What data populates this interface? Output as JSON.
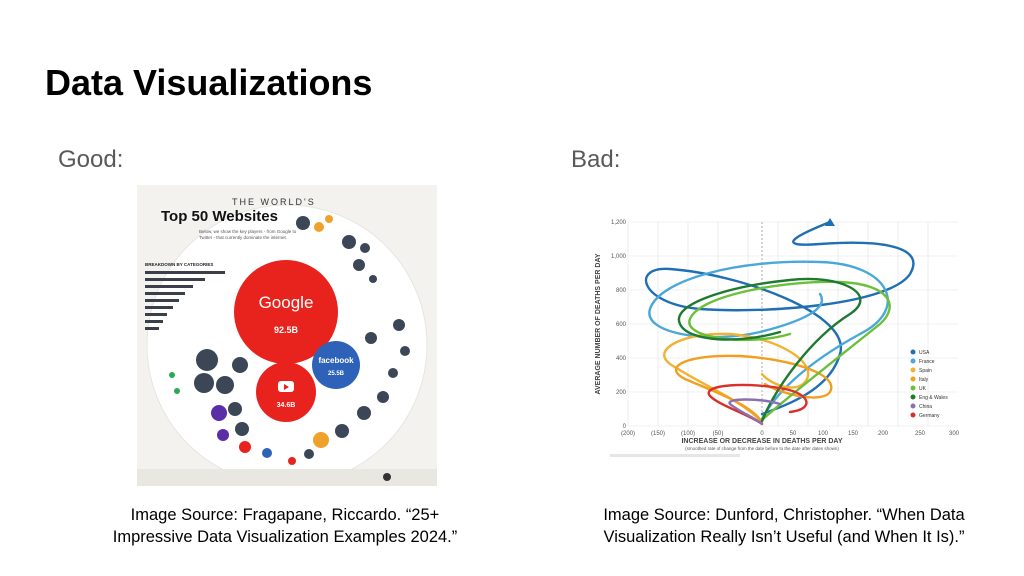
{
  "slide": {
    "title": "Data Visualizations",
    "good_label": "Good:",
    "bad_label": "Bad:",
    "left_caption_line1": "Image Source: Fragapane, Riccardo. “25+",
    "left_caption_line2": "Impressive Data Visualization Examples 2024.”",
    "right_caption_line1": "Image Source: Dunford, Christopher. “When Data",
    "right_caption_line2": "Visualization Really Isn’t Useful (and When It Is).”"
  },
  "good_image": {
    "heading_small": "THE WORLD'S",
    "heading_large": "Top 50 Websites",
    "subtitle_line1": "Below, we show the key players - from Google to",
    "subtitle_line2": "Twitter - that currently dominate the internet.",
    "breakdown_title": "BREAKDOWN BY CATEGORIES",
    "google": {
      "name": "Google",
      "value": "92.5B"
    },
    "facebook": {
      "name": "facebook",
      "value": "25.5B"
    },
    "youtube": {
      "value": "34.6B"
    }
  },
  "bad_image": {
    "y_axis_label": "AVERAGE NUMBER OF DEATHS PER DAY",
    "x_axis_label": "INCREASE OR DECREASE IN DEATHS PER DAY",
    "x_axis_sublabel": "(smoothed rate of change from the date before to the date after dates shown)",
    "y_ticks": [
      "0",
      "200",
      "400",
      "600",
      "800",
      "1,000",
      "1,200"
    ],
    "x_ticks": [
      "(200)",
      "(150)",
      "(100)",
      "(50)",
      "0",
      "50",
      "100",
      "150",
      "200",
      "250",
      "300"
    ],
    "legend": [
      "USA",
      "France",
      "Spain",
      "Italy",
      "UK",
      "Eng & Wales",
      "China",
      "Germany"
    ],
    "colors": {
      "usa": "#1f6fb2",
      "france": "#4aa8d8",
      "spain": "#f2b233",
      "italy": "#f0a020",
      "uk": "#6cbf3a",
      "eng_wales": "#1d7a30",
      "china": "#8a6fb3",
      "germany": "#d9302a"
    }
  }
}
